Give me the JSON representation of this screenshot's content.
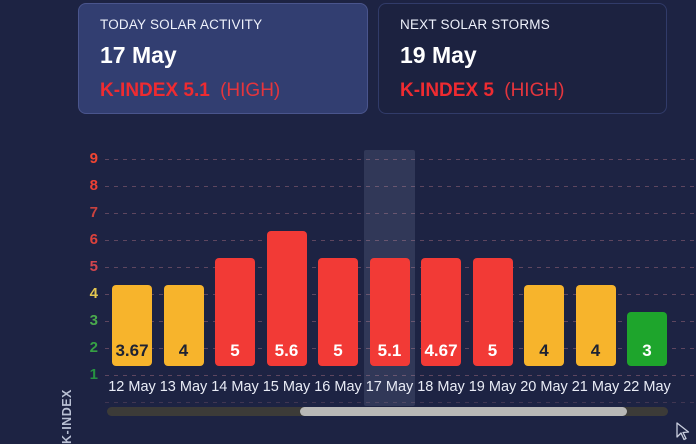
{
  "cards": {
    "today": {
      "title": "TODAY SOLAR ACTIVITY",
      "date": "17 May",
      "kindex": "K-INDEX 5.1",
      "level": "(HIGH)"
    },
    "next": {
      "title": "NEXT SOLAR STORMS",
      "date": "19 May",
      "kindex": "K-INDEX 5",
      "level": "(HIGH)"
    }
  },
  "palette": {
    "bar_high": "#f23a36",
    "bar_moderate": "#f7b42c",
    "bar_low": "#1ea52c",
    "accent_red": "#ee2b31",
    "value_on_moderate": "#1e2233",
    "value_on_strong": "#ffffff",
    "highlight_band": "rgba(188,199,233,0.13)"
  },
  "chart_data": {
    "type": "bar",
    "title": "",
    "xlabel": "",
    "ylabel": "K-INDEX",
    "categories": [
      "12 May",
      "13 May",
      "14 May",
      "15 May",
      "16 May",
      "17 May",
      "18 May",
      "19 May",
      "20 May",
      "21 May",
      "22 May"
    ],
    "values": [
      3.67,
      4,
      5,
      5.6,
      5,
      5.1,
      4.67,
      5,
      4,
      4,
      3
    ],
    "severity": [
      "moderate",
      "moderate",
      "high",
      "high",
      "high",
      "high",
      "high",
      "high",
      "moderate",
      "moderate",
      "low"
    ],
    "ylim": [
      0,
      9
    ],
    "grid": "dashed-horizontal",
    "legend": "none",
    "highlighted_category": "17 May",
    "y_ticks": [
      {
        "label": "9",
        "color": "#f04532"
      },
      {
        "label": "8",
        "color": "#ee4034"
      },
      {
        "label": "7",
        "color": "#c9423f"
      },
      {
        "label": "6",
        "color": "#dd423c"
      },
      {
        "label": "5",
        "color": "#d4454e"
      },
      {
        "label": "4",
        "color": "#e3c650"
      },
      {
        "label": "3",
        "color": "#4aa94d"
      },
      {
        "label": "2",
        "color": "#36a144"
      },
      {
        "label": "1",
        "color": "#269241"
      }
    ]
  }
}
